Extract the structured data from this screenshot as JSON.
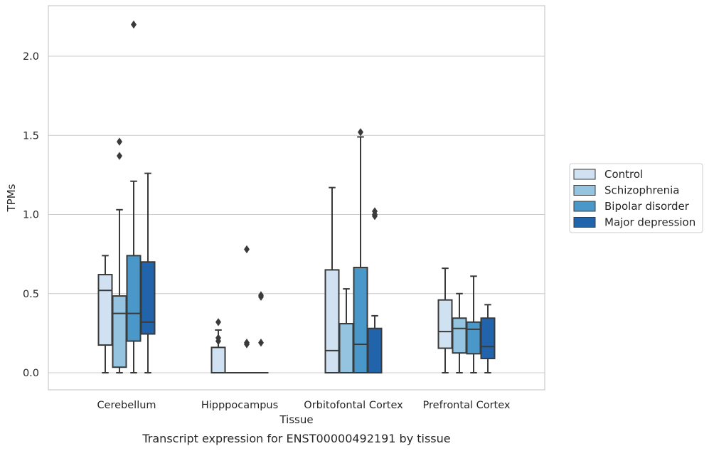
{
  "chart_data": {
    "type": "box",
    "title": "Transcript expression for ENST00000492191 by tissue",
    "xlabel": "Tissue",
    "ylabel": "TPMs",
    "ylim": [
      -0.1,
      2.32
    ],
    "yticks": [
      0.0,
      0.5,
      1.0,
      1.5,
      2.0
    ],
    "ytick_labels": [
      "0.0",
      "0.5",
      "1.0",
      "1.5",
      "2.0"
    ],
    "grid": "horizontal",
    "legend_position": "right",
    "categories": [
      "Cerebellum",
      "Hipppocampus",
      "Orbitofontal Cortex",
      "Prefrontal Cortex"
    ],
    "series": [
      {
        "name": "Control",
        "color": "#d0e1f2",
        "boxes": [
          {
            "whislo": 0.0,
            "q1": 0.175,
            "med": 0.52,
            "q3": 0.62,
            "whishi": 0.74,
            "fliers": []
          },
          {
            "whislo": 0.0,
            "q1": 0.0,
            "med": 0.0,
            "q3": 0.16,
            "whishi": 0.27,
            "fliers": [
              0.32,
              0.22,
              0.2
            ]
          },
          {
            "whislo": 0.0,
            "q1": 0.0,
            "med": 0.14,
            "q3": 0.65,
            "whishi": 1.17,
            "fliers": []
          },
          {
            "whislo": 0.0,
            "q1": 0.155,
            "med": 0.26,
            "q3": 0.46,
            "whishi": 0.66,
            "fliers": []
          }
        ]
      },
      {
        "name": "Schizophrenia",
        "color": "#94c4df",
        "boxes": [
          {
            "whislo": 0.0,
            "q1": 0.035,
            "med": 0.375,
            "q3": 0.485,
            "whishi": 1.03,
            "fliers": [
              1.46,
              1.37
            ]
          },
          {
            "whislo": 0.0,
            "q1": 0.0,
            "med": 0.0,
            "q3": 0.0,
            "whishi": 0.0,
            "fliers": []
          },
          {
            "whislo": 0.0,
            "q1": 0.0,
            "med": 0.0,
            "q3": 0.31,
            "whishi": 0.53,
            "fliers": []
          },
          {
            "whislo": 0.0,
            "q1": 0.125,
            "med": 0.28,
            "q3": 0.345,
            "whishi": 0.5,
            "fliers": []
          }
        ]
      },
      {
        "name": "Bipolar disorder",
        "color": "#4a98c9",
        "boxes": [
          {
            "whislo": 0.0,
            "q1": 0.2,
            "med": 0.375,
            "q3": 0.74,
            "whishi": 1.21,
            "fliers": [
              2.2
            ]
          },
          {
            "whislo": 0.0,
            "q1": 0.0,
            "med": 0.0,
            "q3": 0.0,
            "whishi": 0.0,
            "fliers": [
              0.78,
              0.19,
              0.18
            ]
          },
          {
            "whislo": 0.0,
            "q1": 0.0,
            "med": 0.18,
            "q3": 0.665,
            "whishi": 1.49,
            "fliers": [
              1.52
            ]
          },
          {
            "whislo": 0.0,
            "q1": 0.12,
            "med": 0.275,
            "q3": 0.32,
            "whishi": 0.61,
            "fliers": []
          }
        ]
      },
      {
        "name": "Major depression",
        "color": "#2164ab",
        "boxes": [
          {
            "whislo": 0.0,
            "q1": 0.245,
            "med": 0.32,
            "q3": 0.7,
            "whishi": 1.26,
            "fliers": []
          },
          {
            "whislo": 0.0,
            "q1": 0.0,
            "med": 0.0,
            "q3": 0.0,
            "whishi": 0.0,
            "fliers": [
              0.49,
              0.48,
              0.19
            ]
          },
          {
            "whislo": 0.0,
            "q1": 0.0,
            "med": 0.0,
            "q3": 0.28,
            "whishi": 0.36,
            "fliers": [
              1.02,
              1.0,
              0.99
            ]
          },
          {
            "whislo": 0.0,
            "q1": 0.09,
            "med": 0.165,
            "q3": 0.345,
            "whishi": 0.43,
            "fliers": []
          }
        ]
      }
    ]
  }
}
